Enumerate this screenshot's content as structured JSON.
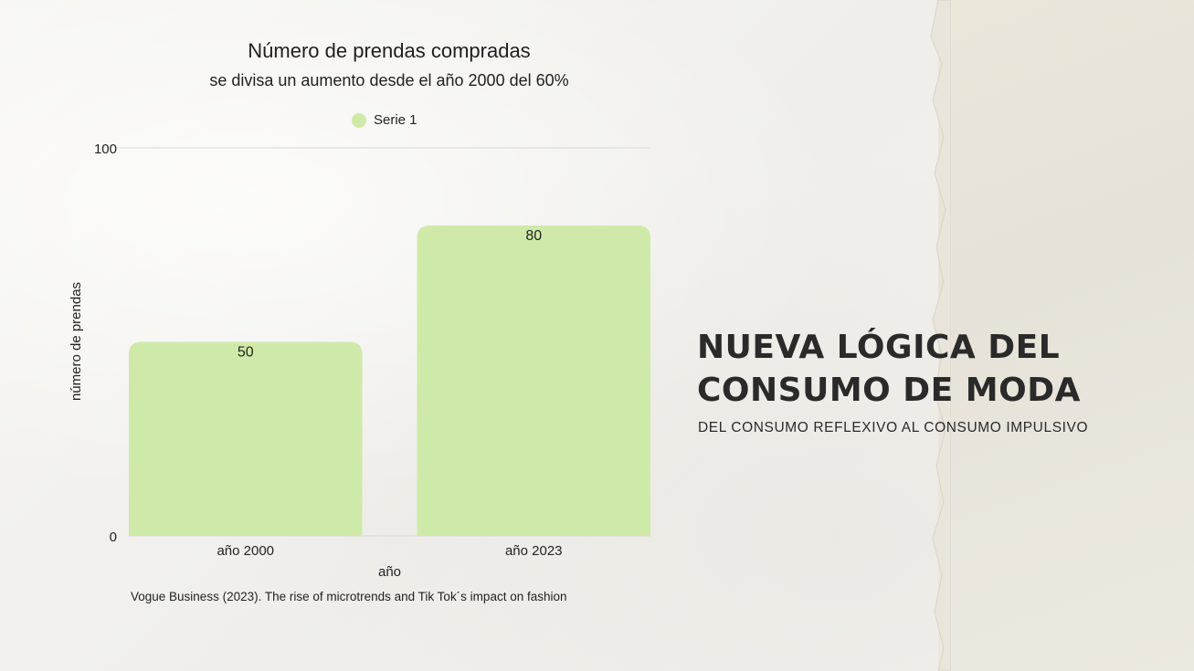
{
  "slide": {
    "headline": "NUEVA LÓGICA DEL CONSUMO DE MODA",
    "subheadline": "DEL CONSUMO REFLEXIVO AL CONSUMO IMPULSIVO",
    "source": "Vogue Business (2023). The rise of microtrends and Tik Tok´s impact on fashion"
  },
  "colors": {
    "bar": "#cfeaa8",
    "background": "#f2f1ee",
    "text": "#2a2a2a"
  },
  "chart_data": {
    "type": "bar",
    "title": "Número de prendas compradas",
    "subtitle": "se divisa un aumento desde el año 2000 del 60%",
    "categories": [
      "año 2000",
      "año 2023"
    ],
    "series": [
      {
        "name": "Serie 1",
        "values": [
          50,
          80
        ]
      }
    ],
    "xlabel": "año",
    "ylabel": "número de prendas",
    "ylim": [
      0,
      100
    ],
    "yticks": [
      "0",
      "100"
    ],
    "grid": true,
    "legend": "top-center",
    "data_labels": [
      "50",
      "80"
    ]
  }
}
